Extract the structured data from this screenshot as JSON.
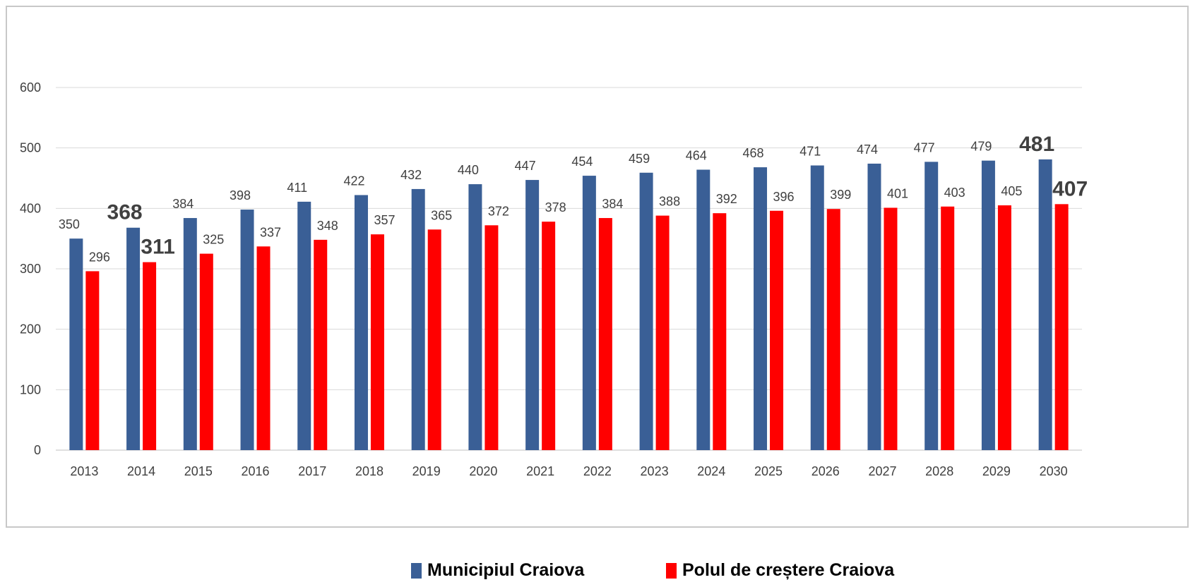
{
  "chart_data": {
    "type": "bar",
    "categories": [
      "2013",
      "2014",
      "2015",
      "2016",
      "2017",
      "2018",
      "2019",
      "2020",
      "2021",
      "2022",
      "2023",
      "2024",
      "2025",
      "2026",
      "2027",
      "2028",
      "2029",
      "2030"
    ],
    "series": [
      {
        "name": "Municipiul Craiova",
        "color": "#3A5F96",
        "values": [
          350,
          368,
          384,
          398,
          411,
          422,
          432,
          440,
          447,
          454,
          459,
          464,
          468,
          471,
          474,
          477,
          479,
          481
        ],
        "highlight_indices": [
          1,
          17
        ]
      },
      {
        "name": "Polul de creștere Craiova",
        "color": "#FF0000",
        "values": [
          296,
          311,
          325,
          337,
          348,
          357,
          365,
          372,
          378,
          384,
          388,
          392,
          396,
          399,
          401,
          403,
          405,
          407
        ],
        "highlight_indices": [
          1,
          17
        ]
      }
    ],
    "ylim": [
      0,
      600
    ],
    "yticks": [
      0,
      100,
      200,
      300,
      400,
      500,
      600
    ],
    "grid": true,
    "legend_position": "bottom"
  },
  "legend": {
    "items": [
      {
        "label": "Municipiul Craiova",
        "color": "#3A5F96"
      },
      {
        "label": "Polul de creștere Craiova",
        "color": "#FF0000"
      }
    ]
  }
}
